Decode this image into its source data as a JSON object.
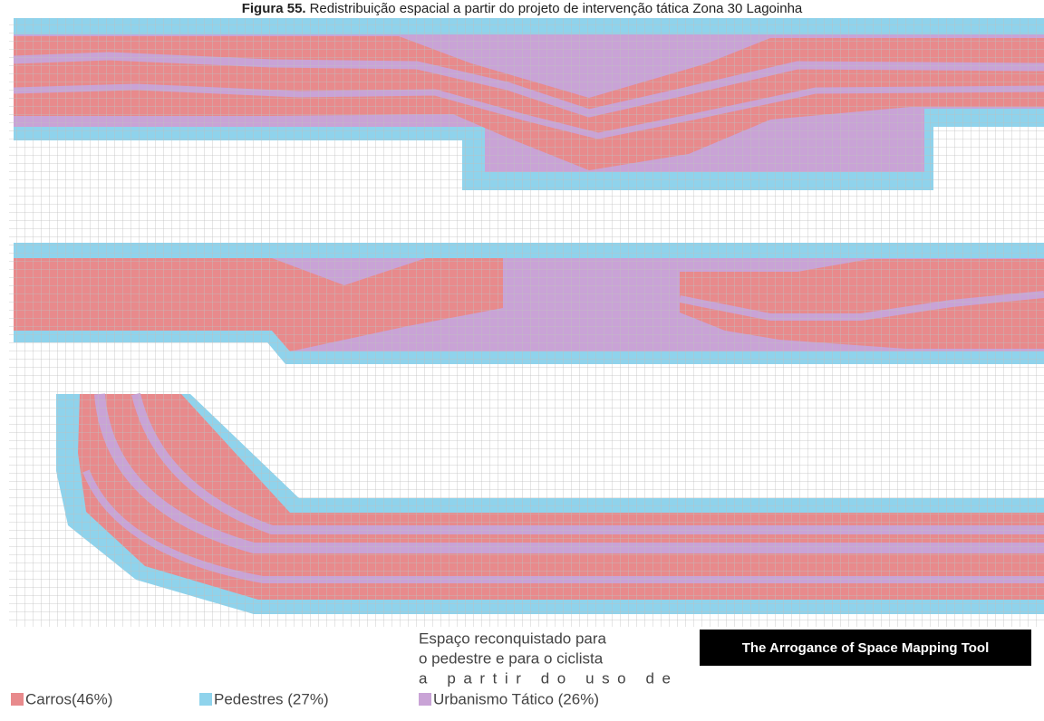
{
  "header": {
    "label": "Figura 55.",
    "text": "Redistribuição espacial a partir do projeto de intervenção tática Zona 30 Lagoinha"
  },
  "annotation": {
    "lines": [
      "Espaço reconquistado para",
      "o pedestre e para o ciclista",
      "a partir do uso de"
    ]
  },
  "badge": "The Arrogance of Space Mapping Tool",
  "legend": [
    {
      "name": "Carros(46%)",
      "color": "#e88a8c"
    },
    {
      "name": "Pedestres (27%)",
      "color": "#8fd3ec"
    },
    {
      "name": "Urbanismo Tático (26%)",
      "color": "#c9a3d6"
    }
  ]
}
